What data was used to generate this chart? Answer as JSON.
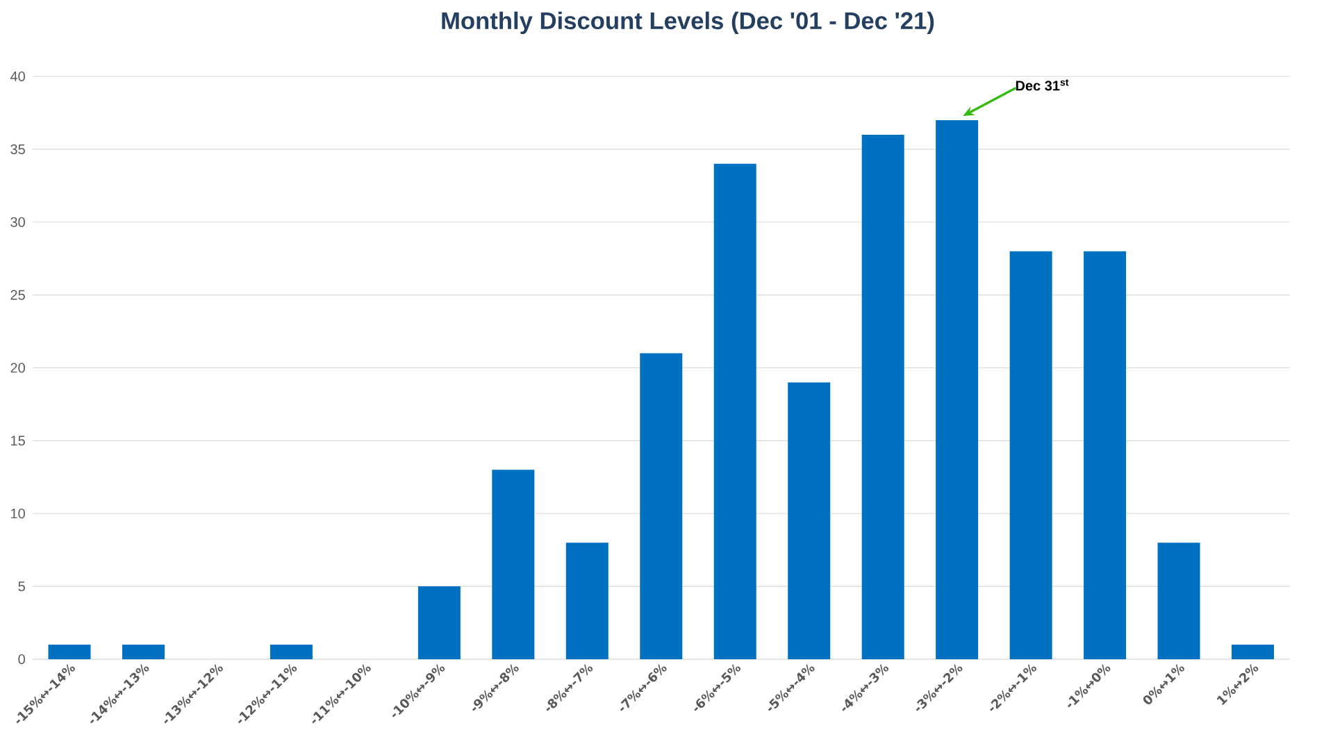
{
  "chart_data": {
    "type": "bar",
    "title": "Monthly Discount Levels (Dec '01 - Dec '21)",
    "categories": [
      "-15%↔-14%",
      "-14%↔-13%",
      "-13%↔-12%",
      "-12%↔-11%",
      "-11%↔-10%",
      "-10%↔-9%",
      "-9%↔-8%",
      "-8%↔-7%",
      "-7%↔-6%",
      "-6%↔-5%",
      "-5%↔-4%",
      "-4%↔-3%",
      "-3%↔-2%",
      "-2%↔-1%",
      "-1%↔0%",
      "0%↔1%",
      "1%↔2%"
    ],
    "values": [
      1,
      1,
      0,
      1,
      0,
      5,
      13,
      8,
      21,
      34,
      19,
      36,
      37,
      28,
      28,
      8,
      1
    ],
    "color": "#0070c0",
    "ylim": [
      0,
      40
    ],
    "yticks": [
      0,
      5,
      10,
      15,
      20,
      25,
      30,
      35,
      40
    ],
    "grid": "y",
    "annotations": [
      "Dec 31$^{st}$"
    ]
  }
}
